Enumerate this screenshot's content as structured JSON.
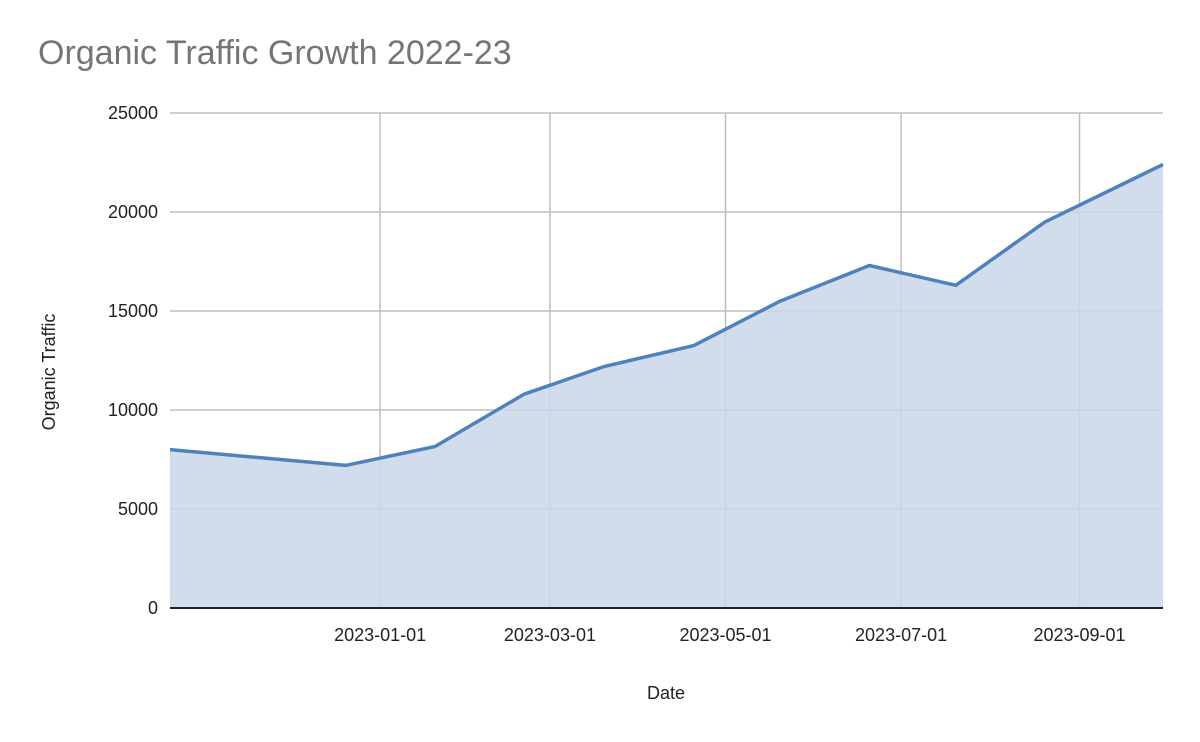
{
  "chart_data": {
    "type": "area",
    "title": "Organic Traffic Growth 2022-23",
    "xlabel": "Date",
    "ylabel": "Organic Traffic",
    "ylim": [
      0,
      25000
    ],
    "yticks": [
      0,
      5000,
      10000,
      15000,
      20000,
      25000
    ],
    "xlim": [
      "2022-10-20",
      "2023-09-30"
    ],
    "xticks": [
      "2023-01-01",
      "2023-03-01",
      "2023-05-01",
      "2023-07-01",
      "2023-09-01"
    ],
    "grid": true,
    "series": [
      {
        "x": [
          "2022-10-20",
          "2022-12-20",
          "2023-01-20",
          "2023-02-20",
          "2023-03-20",
          "2023-04-20",
          "2023-05-20",
          "2023-06-20",
          "2023-07-20",
          "2023-08-20",
          "2023-09-30"
        ],
        "values": [
          8000,
          7200,
          8150,
          10800,
          12200,
          13250,
          15500,
          17300,
          16300,
          19500,
          22400
        ]
      }
    ],
    "colors": {
      "line": "#4f81bd",
      "fill": "#c9d7ea",
      "grid": "#bfbfbf",
      "baseline": "#222222",
      "title": "#757575"
    }
  }
}
